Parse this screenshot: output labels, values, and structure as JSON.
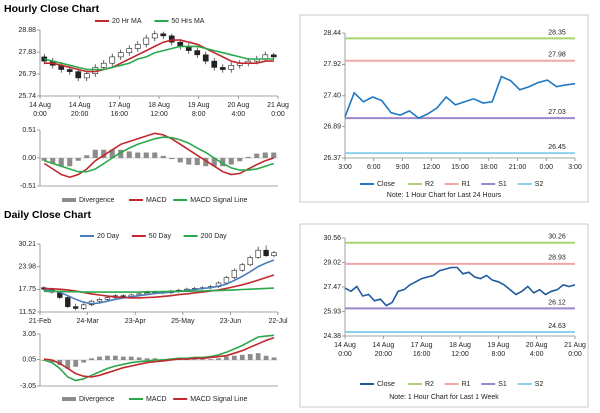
{
  "chart_data": [
    {
      "type": "candlestick",
      "title": "Hourly Close Chart",
      "ylim": [
        25.74,
        28.88
      ],
      "yticks": [
        25.74,
        26.79,
        27.83,
        28.88
      ],
      "x_labels": [
        "14 Aug\n0:00",
        "14 Aug\n20:00",
        "17 Aug\n16:00",
        "18 Aug\n12:00",
        "19 Aug\n8:00",
        "20 Aug\n4:00",
        "21 Aug\n0:00"
      ],
      "open": [
        27.6,
        27.4,
        27.2,
        27.0,
        26.9,
        26.6,
        26.8,
        27.1,
        27.3,
        27.6,
        27.8,
        28.0,
        28.2,
        28.5,
        28.7,
        28.6,
        28.3,
        28.1,
        27.9,
        27.7,
        27.4,
        27.1,
        27.0,
        27.2,
        27.3,
        27.4,
        27.5,
        27.7
      ],
      "high": [
        27.75,
        27.55,
        27.35,
        27.15,
        27.05,
        26.95,
        27.25,
        27.45,
        27.75,
        27.95,
        28.15,
        28.35,
        28.65,
        28.85,
        28.8,
        28.7,
        28.45,
        28.25,
        28.05,
        27.85,
        27.55,
        27.25,
        27.35,
        27.45,
        27.55,
        27.65,
        27.85,
        27.8
      ],
      "low": [
        27.25,
        27.05,
        26.85,
        26.75,
        26.45,
        26.45,
        26.65,
        26.95,
        27.15,
        27.45,
        27.65,
        27.85,
        28.05,
        28.35,
        28.45,
        28.15,
        27.95,
        27.75,
        27.55,
        27.25,
        26.95,
        26.85,
        26.85,
        27.05,
        27.15,
        27.25,
        27.35,
        27.45
      ],
      "close": [
        27.4,
        27.2,
        27.0,
        26.9,
        26.6,
        26.8,
        27.1,
        27.3,
        27.6,
        27.8,
        28.0,
        28.2,
        28.5,
        28.7,
        28.6,
        28.3,
        28.1,
        27.9,
        27.7,
        27.4,
        27.1,
        27.0,
        27.2,
        27.3,
        27.4,
        27.5,
        27.7,
        27.6
      ],
      "series": [
        {
          "name": "20 Hr MA",
          "color": "#c0282d",
          "values": [
            27.3,
            27.3,
            27.2,
            27.1,
            27.0,
            26.9,
            26.9,
            27.0,
            27.1,
            27.3,
            27.5,
            27.7,
            27.9,
            28.1,
            28.3,
            28.4,
            28.4,
            28.3,
            28.2,
            28.0,
            27.8,
            27.6,
            27.4,
            27.3,
            27.3,
            27.3,
            27.4,
            27.4
          ]
        },
        {
          "name": "50 Hrs MA",
          "color": "#2aa84a",
          "values": [
            27.5,
            27.4,
            27.3,
            27.2,
            27.1,
            27.0,
            27.0,
            27.0,
            27.1,
            27.2,
            27.3,
            27.5,
            27.6,
            27.8,
            27.9,
            28.0,
            28.1,
            28.1,
            28.1,
            28.0,
            27.9,
            27.8,
            27.7,
            27.6,
            27.5,
            27.5,
            27.5,
            27.5
          ]
        }
      ]
    },
    {
      "type": "macd",
      "ylim": [
        -0.51,
        0.51
      ],
      "yticks": [
        0.51,
        {
          "value": 0,
          "label": "0.00"
        },
        -0.51
      ],
      "series": [
        {
          "name": "Divergence",
          "color": "#8c8c8c",
          "style": "bar",
          "values": [
            -0.05,
            -0.1,
            -0.15,
            -0.15,
            -0.05,
            0.05,
            0.15,
            0.15,
            0.15,
            0.15,
            0.12,
            0.1,
            0.1,
            0.1,
            0.04,
            -0.02,
            -0.08,
            -0.12,
            -0.13,
            -0.15,
            -0.15,
            -0.15,
            -0.12,
            -0.06,
            0.02,
            0.08,
            0.1,
            0.1
          ]
        },
        {
          "name": "MACD",
          "color": "#c0282d",
          "style": "line",
          "values": [
            -0.1,
            -0.2,
            -0.3,
            -0.35,
            -0.3,
            -0.2,
            -0.05,
            0.05,
            0.15,
            0.25,
            0.3,
            0.35,
            0.4,
            0.45,
            0.42,
            0.35,
            0.25,
            0.15,
            0.05,
            -0.05,
            -0.15,
            -0.25,
            -0.3,
            -0.28,
            -0.2,
            -0.12,
            -0.05,
            0.0
          ]
        },
        {
          "name": "MACD Signal Line",
          "color": "#2aa84a",
          "style": "line",
          "values": [
            -0.05,
            -0.1,
            -0.15,
            -0.2,
            -0.25,
            -0.25,
            -0.2,
            -0.1,
            0.0,
            0.1,
            0.18,
            0.25,
            0.3,
            0.35,
            0.38,
            0.37,
            0.33,
            0.27,
            0.18,
            0.1,
            0.0,
            -0.1,
            -0.18,
            -0.22,
            -0.22,
            -0.2,
            -0.15,
            -0.1
          ]
        }
      ]
    },
    {
      "type": "line",
      "note": "Note: 1 Hour Chart for Last 24 Hours",
      "ylim": [
        26.37,
        28.44
      ],
      "yticks": [
        26.37,
        26.89,
        27.4,
        27.92,
        28.44
      ],
      "ytick_labels": [
        "26.37",
        "26.89",
        "27.40",
        "27.92",
        "28.44"
      ],
      "x_labels": [
        "3:00",
        "6:00",
        "9:00",
        "12:00",
        "15:00",
        "18:00",
        "21:00",
        "0:00",
        "3:00"
      ],
      "series": [
        {
          "name": "Close",
          "color": "#1f78c1",
          "values": [
            27.05,
            27.45,
            27.3,
            27.38,
            27.32,
            27.12,
            27.08,
            27.15,
            27.03,
            27.1,
            27.2,
            27.38,
            27.25,
            27.3,
            27.35,
            27.28,
            27.3,
            27.72,
            27.65,
            27.5,
            27.55,
            27.62,
            27.66,
            27.55,
            27.58,
            27.6
          ]
        }
      ],
      "levels": [
        {
          "name": "R2",
          "value": 28.35,
          "color": "#a9d46f"
        },
        {
          "name": "R1",
          "value": 27.98,
          "color": "#f2a7a7"
        },
        {
          "name": "S1",
          "value": 27.03,
          "color": "#9b88c9"
        },
        {
          "name": "S2",
          "value": 26.45,
          "color": "#8fd0ef"
        }
      ]
    },
    {
      "type": "candlestick",
      "title": "Daily Close Chart",
      "ylim": [
        11.52,
        30.21
      ],
      "yticks": [
        11.52,
        17.75,
        23.98,
        30.21
      ],
      "x_labels": [
        "21-Feb",
        "24-Mar",
        "23-Apr",
        "25-May",
        "23-Jun",
        "22-Jul"
      ],
      "open": [
        18.2,
        17.8,
        17.0,
        15.5,
        13.0,
        12.5,
        13.5,
        14.5,
        15.0,
        15.5,
        16.0,
        15.8,
        16.2,
        16.5,
        16.8,
        17.0,
        16.8,
        17.2,
        17.5,
        17.8,
        18.0,
        18.2,
        18.5,
        19.5,
        21.0,
        23.0,
        24.5,
        26.5,
        28.5,
        27.0
      ],
      "high": [
        18.6,
        18.2,
        17.4,
        16.0,
        13.8,
        13.9,
        14.9,
        15.4,
        15.9,
        16.4,
        16.4,
        16.6,
        16.9,
        17.2,
        17.4,
        17.4,
        17.6,
        17.9,
        18.2,
        18.4,
        18.6,
        18.9,
        19.9,
        21.4,
        23.5,
        25.0,
        27.0,
        29.5,
        29.8,
        28.3
      ],
      "low": [
        17.4,
        16.6,
        15.1,
        12.6,
        12.0,
        12.1,
        13.1,
        14.1,
        14.6,
        15.1,
        15.4,
        15.4,
        15.8,
        16.1,
        16.4,
        16.4,
        16.4,
        16.8,
        17.1,
        17.4,
        17.6,
        17.8,
        18.1,
        19.1,
        20.6,
        22.6,
        24.1,
        26.1,
        26.6,
        26.6
      ],
      "close": [
        17.8,
        17.0,
        15.5,
        13.0,
        12.5,
        13.5,
        14.5,
        15.0,
        15.5,
        16.0,
        15.8,
        16.2,
        16.5,
        16.8,
        17.0,
        16.8,
        17.2,
        17.5,
        17.8,
        18.0,
        18.2,
        18.5,
        19.5,
        21.0,
        23.0,
        24.5,
        26.5,
        28.5,
        27.0,
        27.8
      ],
      "series": [
        {
          "name": "20 Day",
          "color": "#4a7ebb",
          "values": [
            17.5,
            17.4,
            17.0,
            16.0,
            15.0,
            14.2,
            13.8,
            14.0,
            14.5,
            15.0,
            15.4,
            15.7,
            16.0,
            16.3,
            16.6,
            16.8,
            17.0,
            17.2,
            17.4,
            17.7,
            18.0,
            18.2,
            18.6,
            19.2,
            20.2,
            21.3,
            22.6,
            24.0,
            25.0,
            25.8
          ]
        },
        {
          "name": "50 Day",
          "color": "#c0282d",
          "values": [
            18.0,
            17.9,
            17.8,
            17.6,
            17.3,
            16.9,
            16.5,
            16.2,
            15.9,
            15.7,
            15.5,
            15.4,
            15.4,
            15.5,
            15.6,
            15.8,
            16.0,
            16.3,
            16.5,
            16.8,
            17.0,
            17.3,
            17.6,
            18.0,
            18.5,
            19.0,
            19.6,
            20.3,
            21.0,
            21.7
          ]
        },
        {
          "name": "200 Day",
          "color": "#2aa84a",
          "values": [
            17.2,
            17.2,
            17.2,
            17.1,
            17.1,
            17.0,
            17.0,
            17.0,
            17.0,
            17.0,
            17.0,
            17.0,
            17.0,
            17.1,
            17.1,
            17.1,
            17.2,
            17.2,
            17.2,
            17.3,
            17.3,
            17.4,
            17.4,
            17.5,
            17.6,
            17.7,
            17.8,
            17.9,
            18.0,
            18.1
          ]
        }
      ]
    },
    {
      "type": "macd",
      "ylim": [
        -3.05,
        3.05
      ],
      "yticks": [
        3.05,
        0.05,
        -3.05
      ],
      "series": [
        {
          "name": "Divergence",
          "color": "#8c8c8c",
          "style": "bar",
          "values": [
            -0.1,
            -0.3,
            -0.6,
            -1.0,
            -0.8,
            -0.3,
            0.2,
            0.4,
            0.5,
            0.5,
            0.4,
            0.4,
            0.3,
            0.2,
            0.2,
            0.1,
            0.1,
            0.1,
            0.1,
            0.1,
            0.1,
            0.1,
            0.2,
            0.4,
            0.5,
            0.6,
            0.7,
            0.8,
            0.5,
            0.3
          ]
        },
        {
          "name": "MACD",
          "color": "#2aa84a",
          "style": "line",
          "values": [
            0,
            -0.3,
            -1.0,
            -2.0,
            -2.4,
            -2.2,
            -1.8,
            -1.4,
            -1.0,
            -0.7,
            -0.5,
            -0.3,
            -0.2,
            -0.1,
            0,
            0,
            0.1,
            0.2,
            0.2,
            0.3,
            0.3,
            0.4,
            0.6,
            0.9,
            1.3,
            1.7,
            2.2,
            2.7,
            2.8,
            2.9
          ]
        },
        {
          "name": "MACD Signal Line",
          "color": "#c0282d",
          "style": "line",
          "values": [
            0.1,
            0,
            -0.4,
            -1.0,
            -1.6,
            -1.9,
            -2.0,
            -1.8,
            -1.5,
            -1.2,
            -0.9,
            -0.7,
            -0.5,
            -0.3,
            -0.2,
            -0.1,
            0,
            0.1,
            0.1,
            0.2,
            0.2,
            0.3,
            0.4,
            0.5,
            0.8,
            1.1,
            1.5,
            1.9,
            2.3,
            2.6
          ]
        }
      ]
    },
    {
      "type": "line",
      "note": "Note: 1 Hour Chart for Last 1 Week",
      "ylim": [
        24.38,
        30.56
      ],
      "yticks": [
        24.38,
        25.93,
        27.47,
        29.02,
        30.56
      ],
      "x_labels": [
        "14 Aug\n0:00",
        "14 Aug\n20:00",
        "17 Aug\n16:00",
        "18 Aug\n12:00",
        "19 Aug\n8:00",
        "20 Aug\n4:00",
        "21 Aug\n0:00"
      ],
      "series": [
        {
          "name": "Close",
          "color": "#1f5aa0",
          "values": [
            27.4,
            27.2,
            27.5,
            26.9,
            27.0,
            26.6,
            26.7,
            26.3,
            26.5,
            27.2,
            27.3,
            27.6,
            27.8,
            28.0,
            28.1,
            28.2,
            28.5,
            28.6,
            28.7,
            28.7,
            28.3,
            28.4,
            28.1,
            28.0,
            28.2,
            27.9,
            27.8,
            27.6,
            27.3,
            27.0,
            27.2,
            27.5,
            27.1,
            27.3,
            27.0,
            27.2,
            27.3,
            27.6,
            27.5,
            27.6
          ]
        }
      ],
      "levels": [
        {
          "name": "R2",
          "value": 30.26,
          "color": "#a9d46f"
        },
        {
          "name": "R1",
          "value": 28.93,
          "color": "#f2a7a7"
        },
        {
          "name": "S1",
          "value": 26.12,
          "color": "#9b88c9"
        },
        {
          "name": "S2",
          "value": 24.63,
          "color": "#8fd0ef"
        }
      ]
    }
  ]
}
